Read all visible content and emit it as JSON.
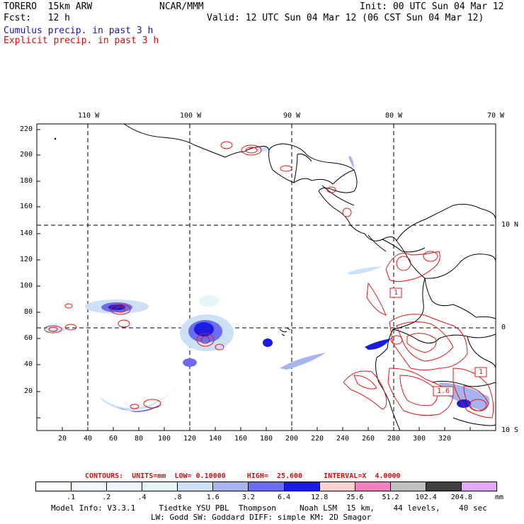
{
  "header": {
    "model": "TORERO  15km ARW",
    "center": "NCAR/MMM",
    "init": "Init: 00 UTC Sun 04 Mar 12",
    "fcst": "Fcst:   12 h",
    "valid": "Valid: 12 UTC Sun 04 Mar 12 (06 CST Sun 04 Mar 12)",
    "field1": "Cumulus precip. in past 3 h",
    "field2": "Explicit precip. in past 3 h"
  },
  "map": {
    "lon_labels": [
      "110 W",
      "100 W",
      "90 W",
      "80 W",
      "70 W"
    ],
    "lat_labels": [
      "10 N",
      "0",
      "10 S"
    ],
    "x_ticks": [
      "20",
      "40",
      "60",
      "80",
      "100",
      "120",
      "140",
      "160",
      "180",
      "200",
      "220",
      "240",
      "260",
      "280",
      "300",
      "320"
    ],
    "y_ticks": [
      "220",
      "200",
      "180",
      "160",
      "140",
      "120",
      "100",
      "80",
      "60",
      "40",
      "20"
    ],
    "contour_labels": [
      "1",
      "1.6",
      "1"
    ]
  },
  "contour_info": "CONTOURS:  UNITS=mm  LOW= 0.10000     HIGH=  25.600     INTERVAL=X  4.0000",
  "colorbar": {
    "labels": [
      ".1",
      ".2",
      ".4",
      ".8",
      "1.6",
      "3.2",
      "6.4",
      "12.8",
      "25.6",
      "51.2",
      "102.4",
      "204.8",
      "mm"
    ],
    "colors": [
      "#ffffff",
      "#f4f8ff",
      "#eef6ff",
      "#e4f6f8",
      "#cce0f6",
      "#a6b4f0",
      "#6c6cf0",
      "#1c1ce0",
      "#ffd0d0",
      "#f080c0",
      "#c0c0c0",
      "#404040",
      "#e0a8f8"
    ]
  },
  "model_info": {
    "line1": "Model Info: V3.3.1     Tiedtke YSU PBL  Thompson     Noah LSM  15 km,    44 levels,    40 sec",
    "line2": "LW: Godd SW: Goddard DIFF: simple KM: 2D Smagor"
  }
}
